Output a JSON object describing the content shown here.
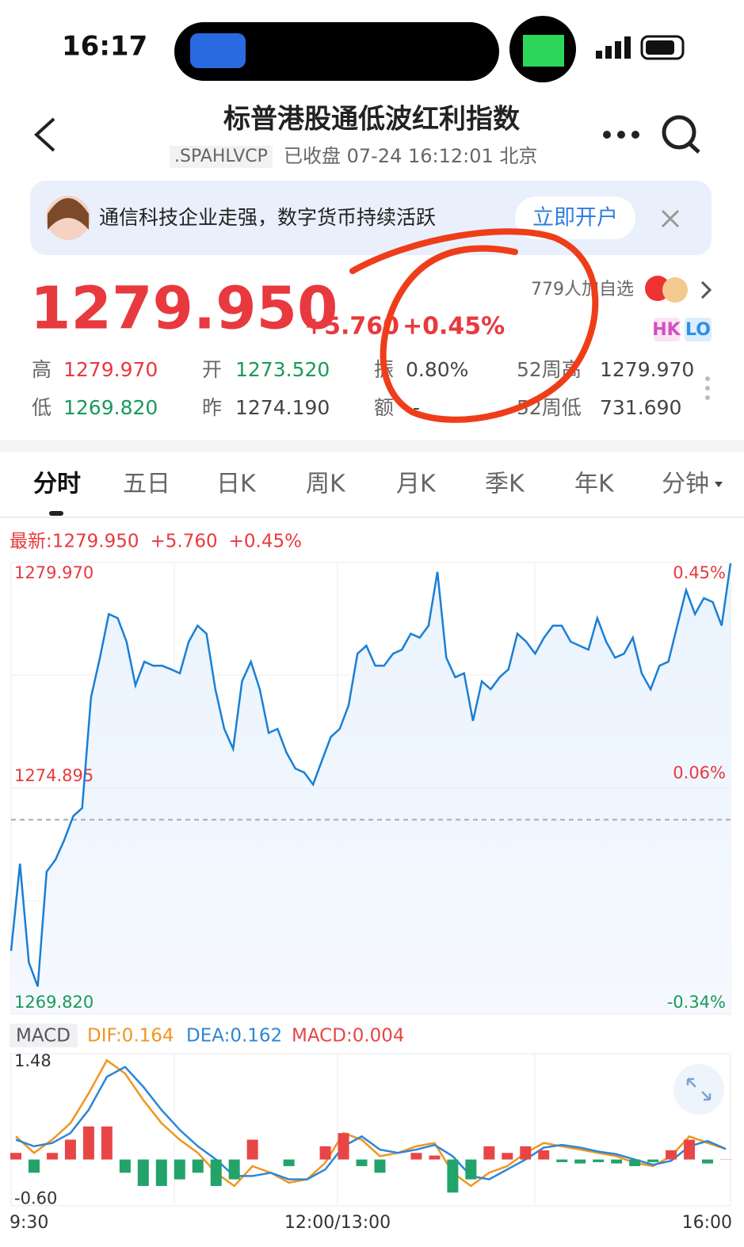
{
  "status": {
    "time": "16:17"
  },
  "header": {
    "title": "标普港股通低波红利指数",
    "code": ".SPAHLVCP",
    "state": "已收盘 07-24 16:12:01 北京"
  },
  "banner": {
    "text": "通信科技企业走强，数字货币持续活跃",
    "button": "立即开户"
  },
  "quote": {
    "price": "1279.950",
    "change": "+5.760",
    "percent": "+0.45%",
    "watchers": "779人加自选",
    "badges": [
      "HK",
      "LO"
    ]
  },
  "stats": [
    {
      "label": "高",
      "value": "1279.970"
    },
    {
      "label": "开",
      "value": "1273.520"
    },
    {
      "label": "振",
      "value": "0.80%"
    },
    {
      "label": "52周高",
      "value": "1279.970"
    },
    {
      "label": "低",
      "value": "1269.820"
    },
    {
      "label": "昨",
      "value": "1274.190"
    },
    {
      "label": "额",
      "value": "--"
    },
    {
      "label": "52周低",
      "value": "731.690"
    }
  ],
  "tabs": [
    "分时",
    "五日",
    "日K",
    "周K",
    "月K",
    "季K",
    "年K",
    "分钟"
  ],
  "chart_data": [
    {
      "type": "line",
      "latest": [
        "最新:1279.950",
        "+5.760",
        "+0.45%"
      ],
      "x_labels": [
        "9:30",
        "12:00/13:00",
        "16:00"
      ],
      "ylim": [
        1269.82,
        1279.97
      ],
      "yticks": [
        {
          "value": 1279.97,
          "label": "1279.970"
        },
        {
          "value": 1274.895,
          "label": "1274.895"
        },
        {
          "value": 1269.82,
          "label": "1269.820"
        }
      ],
      "y2lim": [
        -0.34,
        0.45
      ],
      "y2ticks": [
        {
          "value": 0.45,
          "label": "0.45%"
        },
        {
          "value": 0.06,
          "label": "0.06%"
        },
        {
          "value": -0.34,
          "label": "-0.34%"
        }
      ],
      "prev_close": 1274.19,
      "series": [
        {
          "name": "价格",
          "color": "#1a7fd4",
          "values": [
            1271.24,
            1273.2,
            1270.98,
            1270.44,
            1273.02,
            1273.29,
            1273.74,
            1274.27,
            1274.45,
            1276.94,
            1277.83,
            1278.81,
            1278.72,
            1278.19,
            1277.21,
            1277.74,
            1277.65,
            1277.65,
            1277.57,
            1277.48,
            1278.19,
            1278.55,
            1278.37,
            1277.12,
            1276.23,
            1275.78,
            1277.3,
            1277.74,
            1277.12,
            1276.14,
            1276.23,
            1275.7,
            1275.34,
            1275.25,
            1274.98,
            1275.52,
            1276.05,
            1276.23,
            1276.76,
            1277.92,
            1278.1,
            1277.65,
            1277.65,
            1277.92,
            1278.01,
            1278.37,
            1278.28,
            1278.55,
            1279.76,
            1277.83,
            1277.39,
            1277.48,
            1276.41,
            1277.3,
            1277.12,
            1277.39,
            1277.57,
            1278.37,
            1278.19,
            1277.92,
            1278.28,
            1278.55,
            1278.55,
            1278.19,
            1278.1,
            1278.01,
            1278.72,
            1278.19,
            1277.83,
            1277.92,
            1278.28,
            1277.48,
            1277.12,
            1277.65,
            1277.74,
            1278.55,
            1279.35,
            1278.81,
            1279.17,
            1279.08,
            1278.55,
            1279.95
          ]
        }
      ]
    },
    {
      "type": "macd",
      "legend": [
        "MACD",
        "DIF:0.164",
        "DEA:0.162",
        "MACD:0.004"
      ],
      "ylim": [
        -0.7,
        1.6
      ],
      "yticks": [
        1.48,
        {
          "value": -0.6,
          "label": "-0.60"
        }
      ],
      "series": [
        {
          "name": "DIF",
          "color": "#f0961e",
          "values": [
            0.35,
            0.1,
            0.3,
            0.55,
            1.0,
            1.5,
            1.3,
            0.9,
            0.55,
            0.3,
            0.1,
            -0.2,
            -0.4,
            -0.1,
            -0.2,
            -0.35,
            -0.3,
            -0.05,
            0.4,
            0.3,
            0.05,
            0.1,
            0.2,
            0.25,
            -0.2,
            -0.4,
            -0.2,
            -0.1,
            0.1,
            0.25,
            0.2,
            0.15,
            0.1,
            0.05,
            -0.05,
            -0.1,
            0.05,
            0.35,
            0.25,
            0.16
          ]
        },
        {
          "name": "DEA",
          "color": "#2d86d6",
          "values": [
            0.3,
            0.2,
            0.25,
            0.4,
            0.75,
            1.25,
            1.4,
            1.1,
            0.75,
            0.45,
            0.2,
            0.0,
            -0.25,
            -0.25,
            -0.2,
            -0.3,
            -0.3,
            -0.15,
            0.2,
            0.35,
            0.15,
            0.1,
            0.15,
            0.22,
            0.05,
            -0.25,
            -0.3,
            -0.15,
            0.0,
            0.18,
            0.22,
            0.18,
            0.12,
            0.08,
            0.0,
            -0.08,
            -0.02,
            0.2,
            0.28,
            0.16
          ]
        },
        {
          "name": "MACD",
          "color": "#e84646",
          "values": [
            0.1,
            -0.2,
            0.1,
            0.3,
            0.5,
            0.5,
            -0.2,
            -0.4,
            -0.4,
            -0.3,
            -0.2,
            -0.4,
            -0.3,
            0.3,
            0.0,
            -0.1,
            0.0,
            0.2,
            0.4,
            -0.1,
            -0.2,
            0.0,
            0.1,
            0.06,
            -0.5,
            -0.3,
            0.2,
            0.1,
            0.2,
            0.14,
            -0.04,
            -0.06,
            -0.04,
            -0.06,
            -0.1,
            -0.04,
            0.14,
            0.3,
            -0.06,
            0.004
          ]
        }
      ]
    }
  ]
}
